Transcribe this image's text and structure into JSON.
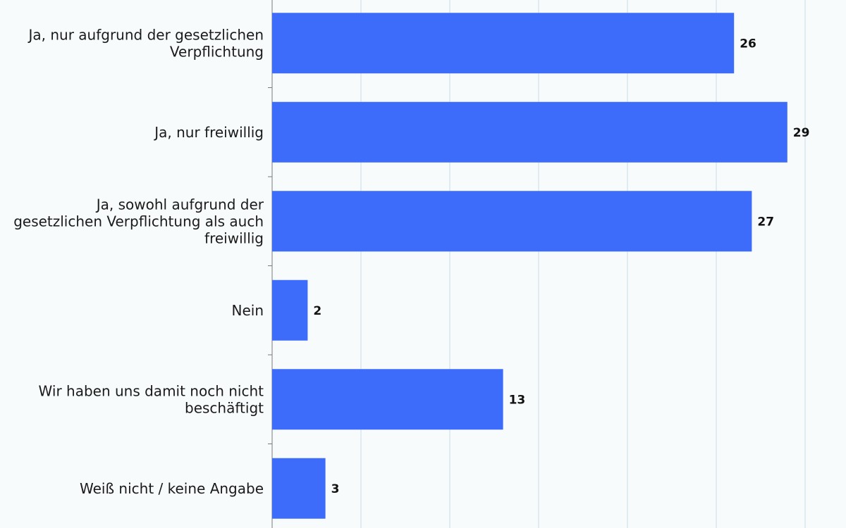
{
  "chart_data": {
    "type": "bar",
    "orientation": "horizontal",
    "categories": [
      "Ja, nur aufgrund der gesetzlichen Verpflichtung",
      "Ja, nur freiwillig",
      "Ja, sowohl aufgrund der gesetzlichen Verpflichtung als auch freiwillig",
      "Nein",
      "Wir haben uns damit noch nicht beschäftigt",
      "Weiß nicht / keine Angabe"
    ],
    "category_lines": [
      [
        "Ja, nur aufgrund der gesetzlichen",
        "Verpflichtung"
      ],
      [
        "Ja, nur freiwillig"
      ],
      [
        "Ja, sowohl aufgrund der",
        "gesetzlichen Verpflichtung als auch",
        "freiwillig"
      ],
      [
        "Nein"
      ],
      [
        "Wir haben uns damit noch nicht",
        "beschäftigt"
      ],
      [
        "Weiß nicht / keine Angabe"
      ]
    ],
    "values": [
      26,
      29,
      27,
      2,
      13,
      3
    ],
    "value_labels": [
      "26",
      "29",
      "27",
      "2",
      "13",
      "3"
    ],
    "xlim": [
      0,
      30
    ],
    "grid": true,
    "bar_color": "#3d6bfa",
    "grid_color": "#c9dde6",
    "title": "",
    "xlabel": "",
    "ylabel": ""
  }
}
